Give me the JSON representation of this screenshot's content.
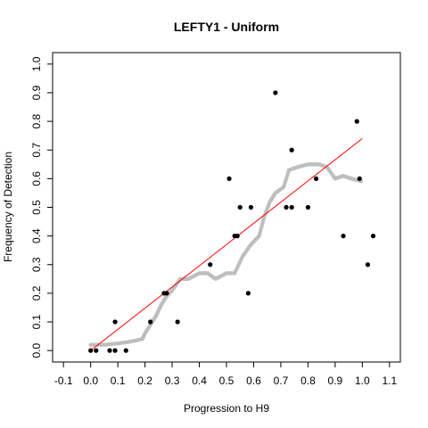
{
  "chart_data": {
    "type": "scatter",
    "title": "LEFTY1 - Uniform",
    "xlabel": "Progression to H9",
    "ylabel": "Frequency of Detection",
    "xlim": [
      -0.14,
      1.14
    ],
    "ylim": [
      -0.04,
      1.04
    ],
    "x_ticks": [
      -0.1,
      0.0,
      0.1,
      0.2,
      0.3,
      0.4,
      0.5,
      0.6,
      0.7,
      0.8,
      0.9,
      1.0,
      1.1
    ],
    "x_tick_labels": [
      "-0.1",
      "0.0",
      "0.1",
      "0.2",
      "0.3",
      "0.4",
      "0.5",
      "0.6",
      "0.7",
      "0.8",
      "0.9",
      "1.0",
      "1.1"
    ],
    "y_ticks": [
      0.0,
      0.1,
      0.2,
      0.3,
      0.4,
      0.5,
      0.6,
      0.7,
      0.8,
      0.9,
      1.0
    ],
    "y_tick_labels": [
      "0.0",
      "0.1",
      "0.2",
      "0.3",
      "0.4",
      "0.5",
      "0.6",
      "0.7",
      "0.8",
      "0.9",
      "1.0"
    ],
    "grid": false,
    "colors": {
      "points": "#000000",
      "smooth": "#bebebe",
      "fit_line": "#ff0000"
    },
    "points": [
      [
        0.0,
        0.0
      ],
      [
        0.02,
        0.0
      ],
      [
        0.07,
        0.0
      ],
      [
        0.09,
        0.0
      ],
      [
        0.09,
        0.1
      ],
      [
        0.13,
        0.0
      ],
      [
        0.22,
        0.1
      ],
      [
        0.27,
        0.2
      ],
      [
        0.28,
        0.2
      ],
      [
        0.32,
        0.1
      ],
      [
        0.44,
        0.3
      ],
      [
        0.51,
        0.6
      ],
      [
        0.53,
        0.4
      ],
      [
        0.54,
        0.4
      ],
      [
        0.55,
        0.5
      ],
      [
        0.58,
        0.2
      ],
      [
        0.59,
        0.5
      ],
      [
        0.68,
        0.9
      ],
      [
        0.72,
        0.5
      ],
      [
        0.74,
        0.5
      ],
      [
        0.74,
        0.7
      ],
      [
        0.8,
        0.5
      ],
      [
        0.83,
        0.6
      ],
      [
        0.93,
        0.4
      ],
      [
        0.98,
        0.8
      ],
      [
        0.99,
        0.6
      ],
      [
        1.02,
        0.3
      ],
      [
        1.04,
        0.4
      ]
    ],
    "smooth_curve": [
      [
        0.0,
        0.02
      ],
      [
        0.05,
        0.02
      ],
      [
        0.1,
        0.025
      ],
      [
        0.14,
        0.03
      ],
      [
        0.19,
        0.04
      ],
      [
        0.2,
        0.06
      ],
      [
        0.22,
        0.09
      ],
      [
        0.24,
        0.12
      ],
      [
        0.26,
        0.16
      ],
      [
        0.28,
        0.19
      ],
      [
        0.3,
        0.21
      ],
      [
        0.33,
        0.25
      ],
      [
        0.36,
        0.25
      ],
      [
        0.4,
        0.27
      ],
      [
        0.43,
        0.27
      ],
      [
        0.46,
        0.25
      ],
      [
        0.5,
        0.27
      ],
      [
        0.53,
        0.27
      ],
      [
        0.56,
        0.33
      ],
      [
        0.59,
        0.37
      ],
      [
        0.62,
        0.4
      ],
      [
        0.64,
        0.47
      ],
      [
        0.66,
        0.52
      ],
      [
        0.68,
        0.55
      ],
      [
        0.71,
        0.57
      ],
      [
        0.73,
        0.63
      ],
      [
        0.76,
        0.64
      ],
      [
        0.8,
        0.65
      ],
      [
        0.84,
        0.65
      ],
      [
        0.87,
        0.64
      ],
      [
        0.9,
        0.6
      ],
      [
        0.93,
        0.61
      ],
      [
        0.96,
        0.6
      ],
      [
        1.0,
        0.59
      ]
    ],
    "fit_line": [
      [
        0.0,
        0.0
      ],
      [
        1.0,
        0.74
      ]
    ]
  }
}
